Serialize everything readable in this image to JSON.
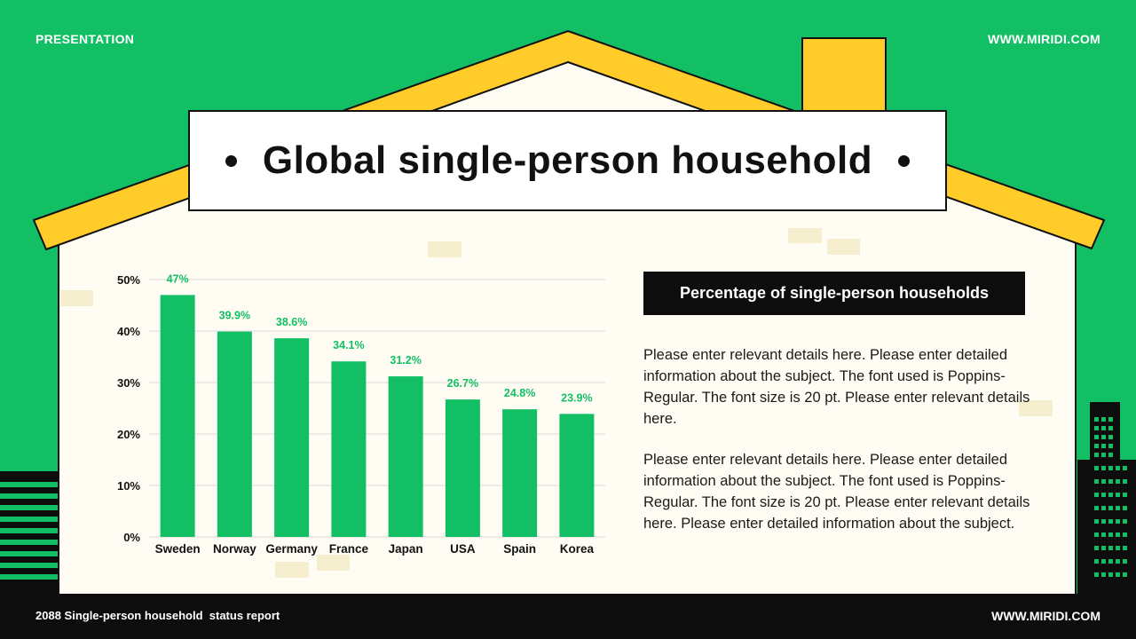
{
  "header": {
    "left_label": "PRESENTATION",
    "right_label": "WWW.MIRIDI.COM"
  },
  "title": "Global single-person household",
  "panel": {
    "heading": "Percentage of single-person households",
    "paragraphs": [
      "Please enter relevant details here. Please enter detailed information about the subject. The font used is Poppins-Regular. The font size is 20 pt. Please enter relevant details here.",
      "Please enter relevant details here. Please enter detailed information about the subject. The font used is Poppins-Regular. The font size is 20 pt. Please enter relevant details here. Please enter detailed information about the subject."
    ]
  },
  "footer": {
    "left_text": "2088 Single-person household  status report",
    "right_text": "WWW.MIRIDI.COM"
  },
  "colors": {
    "background_green": "#13bf64",
    "bar_green": "#13bf64",
    "roof_yellow": "#ffcc29",
    "house_cream": "#fffdf3",
    "dark": "#0d0d0d"
  },
  "chart_data": {
    "type": "bar",
    "categories": [
      "Sweden",
      "Norway",
      "Germany",
      "France",
      "Japan",
      "USA",
      "Spain",
      "Korea"
    ],
    "values": [
      47,
      39.9,
      38.6,
      34.1,
      31.2,
      26.7,
      24.8,
      23.9
    ],
    "data_labels": [
      "47%",
      "39.9%",
      "38.6%",
      "34.1%",
      "31.2%",
      "26.7%",
      "24.8%",
      "23.9%"
    ],
    "y_ticks": [
      0,
      10,
      20,
      30,
      40,
      50
    ],
    "y_tick_labels": [
      "0%",
      "10%",
      "20%",
      "30%",
      "40%",
      "50%"
    ],
    "ylim": [
      0,
      50
    ],
    "grid": true,
    "title": "",
    "xlabel": "",
    "ylabel": ""
  }
}
